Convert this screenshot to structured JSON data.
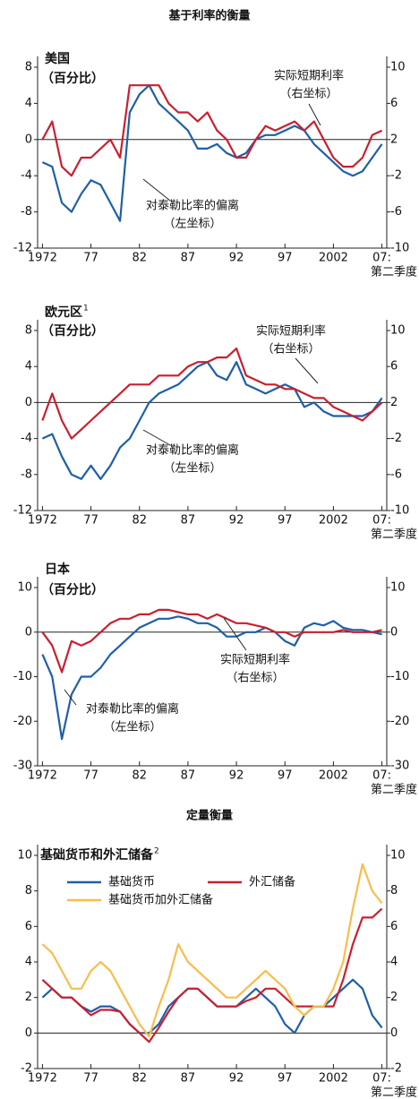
{
  "headings": [
    "基于利率的衡量",
    "定量衡量"
  ],
  "chart_data": [
    {
      "type": "line",
      "title": "美国",
      "subtitle": "（百分比）",
      "zero_line": true,
      "x": [
        1972,
        1973,
        1974,
        1975,
        1976,
        1977,
        1978,
        1979,
        1980,
        1981,
        1982,
        1983,
        1984,
        1985,
        1986,
        1987,
        1988,
        1989,
        1990,
        1991,
        1992,
        1993,
        1994,
        1995,
        1996,
        1997,
        1998,
        1999,
        2000,
        2001,
        2002,
        2003,
        2004,
        2005,
        2006,
        2007
      ],
      "xlim": [
        1971.5,
        2007.5
      ],
      "xticks": [
        {
          "value": 1972,
          "label": "1972"
        },
        {
          "value": 1977,
          "label": "77"
        },
        {
          "value": 1982,
          "label": "82"
        },
        {
          "value": 1987,
          "label": "87"
        },
        {
          "value": 1992,
          "label": "92"
        },
        {
          "value": 1997,
          "label": "97"
        },
        {
          "value": 2002,
          "label": "2002"
        },
        {
          "value": 2007,
          "label": "07:"
        }
      ],
      "x_note": "第二季度",
      "ylim": [
        -12,
        8
      ],
      "yticks": [
        -12,
        -8,
        -4,
        0,
        4,
        8
      ],
      "y2lim": [
        -10,
        10
      ],
      "y2ticks": [
        -10,
        -6,
        -2,
        2,
        6,
        10
      ],
      "series": [
        {
          "name": "对泰勒比率的偏离",
          "color": "#1f5fa8",
          "axis": "y",
          "values": [
            -2.5,
            -3,
            -7,
            -8,
            -6,
            -4.5,
            -5,
            -7,
            -9,
            3,
            5,
            6,
            4,
            3,
            2,
            1,
            -1,
            -1,
            -0.5,
            -1.5,
            -2,
            -1.5,
            0,
            0.5,
            0.5,
            1,
            1.5,
            1,
            -0.5,
            -1.5,
            -2.5,
            -3.5,
            -4,
            -3.5,
            -2,
            -0.5
          ]
        },
        {
          "name": "实际短期利率",
          "color": "#c8202f",
          "axis": "y2",
          "values": [
            2,
            4,
            -1,
            -2,
            0,
            0,
            1,
            2,
            0,
            8,
            8,
            8,
            8,
            6,
            5,
            5,
            4,
            5,
            3,
            2,
            0,
            0,
            2,
            3.5,
            3,
            3.5,
            4,
            3,
            4,
            2,
            0,
            -1,
            -1,
            0,
            2.5,
            3
          ]
        }
      ],
      "annotations": [
        [
          "实际短期利率",
          "（右坐标）"
        ],
        [
          "对泰勒比率的偏离",
          "（左坐标）"
        ]
      ]
    },
    {
      "type": "line",
      "title": "欧元区",
      "title_sup": "1",
      "subtitle": "（百分比）",
      "zero_line": true,
      "x": [
        1972,
        1973,
        1974,
        1975,
        1976,
        1977,
        1978,
        1979,
        1980,
        1981,
        1982,
        1983,
        1984,
        1985,
        1986,
        1987,
        1988,
        1989,
        1990,
        1991,
        1992,
        1993,
        1994,
        1995,
        1996,
        1997,
        1998,
        1999,
        2000,
        2001,
        2002,
        2003,
        2004,
        2005,
        2006,
        2007
      ],
      "xlim": [
        1971.5,
        2007.5
      ],
      "xticks": [
        {
          "value": 1972,
          "label": "1972"
        },
        {
          "value": 1977,
          "label": "77"
        },
        {
          "value": 1982,
          "label": "82"
        },
        {
          "value": 1987,
          "label": "87"
        },
        {
          "value": 1992,
          "label": "92"
        },
        {
          "value": 1997,
          "label": "97"
        },
        {
          "value": 2002,
          "label": "2002"
        },
        {
          "value": 2007,
          "label": "07:"
        }
      ],
      "x_note": "第二季度",
      "ylim": [
        -12,
        8
      ],
      "yticks": [
        -12,
        -8,
        -4,
        0,
        4,
        8
      ],
      "y2lim": [
        -10,
        10
      ],
      "y2ticks": [
        -10,
        -6,
        -2,
        2,
        6,
        10
      ],
      "series": [
        {
          "name": "对泰勒比率的偏离",
          "color": "#1f5fa8",
          "axis": "y",
          "values": [
            -4,
            -3.5,
            -6,
            -8,
            -8.5,
            -7,
            -8.5,
            -7,
            -5,
            -4,
            -2,
            0,
            1,
            1.5,
            2,
            3,
            4,
            4.5,
            3,
            2.5,
            4.5,
            2,
            1.5,
            1,
            1.5,
            2,
            1.5,
            -0.5,
            0,
            -1,
            -1.5,
            -1.5,
            -1.5,
            -1.5,
            -1,
            0.5
          ]
        },
        {
          "name": "实际短期利率",
          "color": "#c8202f",
          "axis": "y2",
          "values": [
            0,
            3,
            0,
            -2,
            -1,
            0,
            1,
            2,
            3,
            4,
            4,
            4,
            5,
            5,
            5,
            6,
            6.5,
            6.5,
            7,
            7,
            8,
            5,
            4.5,
            4,
            4,
            3.5,
            3.5,
            3,
            2.5,
            2.5,
            1.5,
            1,
            0.5,
            0,
            1,
            2
          ]
        }
      ],
      "annotations": [
        [
          "实际短期利率",
          "（右坐标）"
        ],
        [
          "对泰勒比率的偏离",
          "（左坐标）"
        ]
      ]
    },
    {
      "type": "line",
      "title": "日本",
      "subtitle": "（百分比）",
      "zero_line": true,
      "x": [
        1972,
        1973,
        1974,
        1975,
        1976,
        1977,
        1978,
        1979,
        1980,
        1981,
        1982,
        1983,
        1984,
        1985,
        1986,
        1987,
        1988,
        1989,
        1990,
        1991,
        1992,
        1993,
        1994,
        1995,
        1996,
        1997,
        1998,
        1999,
        2000,
        2001,
        2002,
        2003,
        2004,
        2005,
        2006,
        2007
      ],
      "xlim": [
        1971.5,
        2007.5
      ],
      "xticks": [
        {
          "value": 1972,
          "label": "1972"
        },
        {
          "value": 1977,
          "label": "77"
        },
        {
          "value": 1982,
          "label": "82"
        },
        {
          "value": 1987,
          "label": "87"
        },
        {
          "value": 1992,
          "label": "92"
        },
        {
          "value": 1997,
          "label": "97"
        },
        {
          "value": 2002,
          "label": "2002"
        },
        {
          "value": 2007,
          "label": "07:"
        }
      ],
      "x_note": "第二季度",
      "ylim": [
        -30,
        10
      ],
      "yticks": [
        -30,
        -20,
        -10,
        0,
        10
      ],
      "y2lim": [
        -30,
        10
      ],
      "y2ticks": [
        -30,
        -20,
        -10,
        0,
        10
      ],
      "series": [
        {
          "name": "对泰勒比率的偏离",
          "color": "#1f5fa8",
          "axis": "y",
          "values": [
            -5,
            -10,
            -24,
            -14,
            -10,
            -10,
            -8,
            -5,
            -3,
            -1,
            1,
            2,
            3,
            3,
            3.5,
            3,
            2,
            2,
            1,
            -1,
            -1,
            0,
            0,
            1,
            0,
            -2,
            -3,
            1,
            2,
            1.5,
            2.5,
            1,
            0.5,
            0.5,
            0,
            -0.5
          ]
        },
        {
          "name": "实际短期利率",
          "color": "#c8202f",
          "axis": "y2",
          "values": [
            0,
            -3,
            -9,
            -2,
            -3,
            -2,
            0,
            2,
            3,
            3,
            4,
            4,
            5,
            5,
            4.5,
            4,
            4,
            3,
            4,
            3,
            2,
            2,
            1.5,
            1,
            0,
            0,
            -1,
            0,
            0,
            0,
            0,
            0.5,
            0,
            0,
            0,
            0.5
          ]
        }
      ],
      "annotations": [
        [
          "实际短期利率",
          "（右坐标）"
        ],
        [
          "对泰勒比率的偏离",
          "（左坐标）"
        ]
      ]
    },
    {
      "type": "line",
      "title": "基础货币和外汇储备",
      "title_sup": "2",
      "zero_line": true,
      "legend": true,
      "x": [
        1972,
        1973,
        1974,
        1975,
        1976,
        1977,
        1978,
        1979,
        1980,
        1981,
        1982,
        1983,
        1984,
        1985,
        1986,
        1987,
        1988,
        1989,
        1990,
        1991,
        1992,
        1993,
        1994,
        1995,
        1996,
        1997,
        1998,
        1999,
        2000,
        2001,
        2002,
        2003,
        2004,
        2005,
        2006,
        2007
      ],
      "xlim": [
        1971.5,
        2007.5
      ],
      "xticks": [
        {
          "value": 1972,
          "label": "1972"
        },
        {
          "value": 1977,
          "label": "77"
        },
        {
          "value": 1982,
          "label": "82"
        },
        {
          "value": 1987,
          "label": "87"
        },
        {
          "value": 1992,
          "label": "92"
        },
        {
          "value": 1997,
          "label": "97"
        },
        {
          "value": 2002,
          "label": "2002"
        },
        {
          "value": 2007,
          "label": "07:"
        }
      ],
      "x_note": "第二季度",
      "ylim": [
        -2,
        10
      ],
      "yticks": [
        -2,
        0,
        2,
        4,
        6,
        8,
        10
      ],
      "y2lim": [
        -2,
        10
      ],
      "y2ticks": [
        -2,
        0,
        2,
        4,
        6,
        8,
        10
      ],
      "series": [
        {
          "name": "基础货币",
          "color": "#1f5fa8",
          "axis": "y",
          "values": [
            2,
            2.5,
            2,
            2,
            1.5,
            1.2,
            1.5,
            1.5,
            1.2,
            0.5,
            0,
            0,
            0.5,
            1.5,
            2,
            2.5,
            2.5,
            2,
            1.5,
            1.5,
            1.5,
            2,
            2.5,
            2,
            1.5,
            0.5,
            0,
            1,
            1.5,
            1.5,
            2,
            2.5,
            3,
            2.5,
            1,
            0.3
          ]
        },
        {
          "name": "外汇储备",
          "color": "#c8202f",
          "axis": "y",
          "values": [
            3,
            2.5,
            2,
            2,
            1.5,
            1,
            1.3,
            1.3,
            1.2,
            0.5,
            0,
            -0.5,
            0.3,
            1.2,
            2,
            2.5,
            2.5,
            2,
            1.5,
            1.5,
            1.5,
            1.8,
            2,
            2.5,
            2.5,
            2,
            1.5,
            1.5,
            1.5,
            1.5,
            1.5,
            3,
            5,
            6.5,
            6.5,
            7
          ]
        },
        {
          "name": "基础货币加外汇储备",
          "color": "#f7bd4d",
          "axis": "y",
          "values": [
            5,
            4.5,
            3.5,
            2.5,
            2.5,
            3.5,
            4,
            3.5,
            2.5,
            1.5,
            0.5,
            -0.2,
            1.5,
            3,
            5,
            4,
            3.5,
            3,
            2.5,
            2,
            2,
            2.5,
            3,
            3.5,
            3,
            2.5,
            1.5,
            1,
            1.5,
            1.5,
            2.5,
            4,
            7,
            9.5,
            8,
            7.3
          ]
        }
      ]
    }
  ]
}
